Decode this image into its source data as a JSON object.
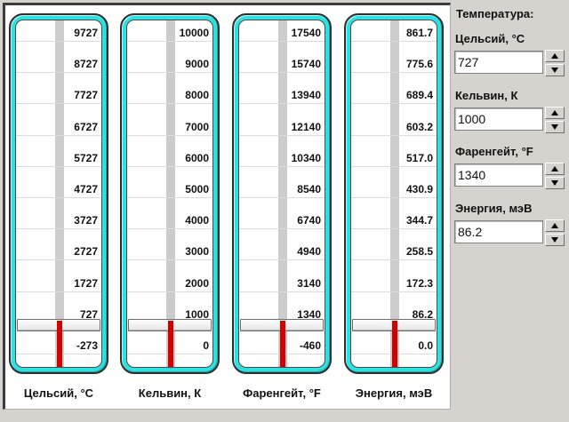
{
  "side_panel": {
    "title": "Температура:",
    "fields": [
      {
        "label": "Цельсий, °C",
        "value": "727"
      },
      {
        "label": "Кельвин, К",
        "value": "1000"
      },
      {
        "label": "Фаренгейт, °F",
        "value": "1340"
      },
      {
        "label": "Энергия, мэВ",
        "value": "86.2"
      }
    ]
  },
  "thermometers": [
    {
      "name": "Цельсий, °C",
      "ticks": [
        "9727",
        "8727",
        "7727",
        "6727",
        "5727",
        "4727",
        "3727",
        "2727",
        "1727",
        "727",
        "-273"
      ],
      "value": "727"
    },
    {
      "name": "Кельвин, К",
      "ticks": [
        "10000",
        "9000",
        "8000",
        "7000",
        "6000",
        "5000",
        "4000",
        "3000",
        "2000",
        "1000",
        "0"
      ],
      "value": "1000"
    },
    {
      "name": "Фаренгейт, °F",
      "ticks": [
        "17540",
        "15740",
        "13940",
        "12140",
        "10340",
        "8540",
        "6740",
        "4940",
        "3140",
        "1340",
        "-460"
      ],
      "value": "1340"
    },
    {
      "name": "Энергия, мэВ",
      "ticks": [
        "861.7",
        "775.6",
        "689.4",
        "603.2",
        "517.0",
        "430.9",
        "344.7",
        "258.5",
        "172.3",
        "86.2",
        "0.0"
      ],
      "value": "86.2"
    }
  ],
  "colors": {
    "panel_gray": "#d6d3ce",
    "thermo_cyan": "#2fe0e0",
    "mercury_red": "#d40000",
    "track_gray": "#cccccc"
  }
}
